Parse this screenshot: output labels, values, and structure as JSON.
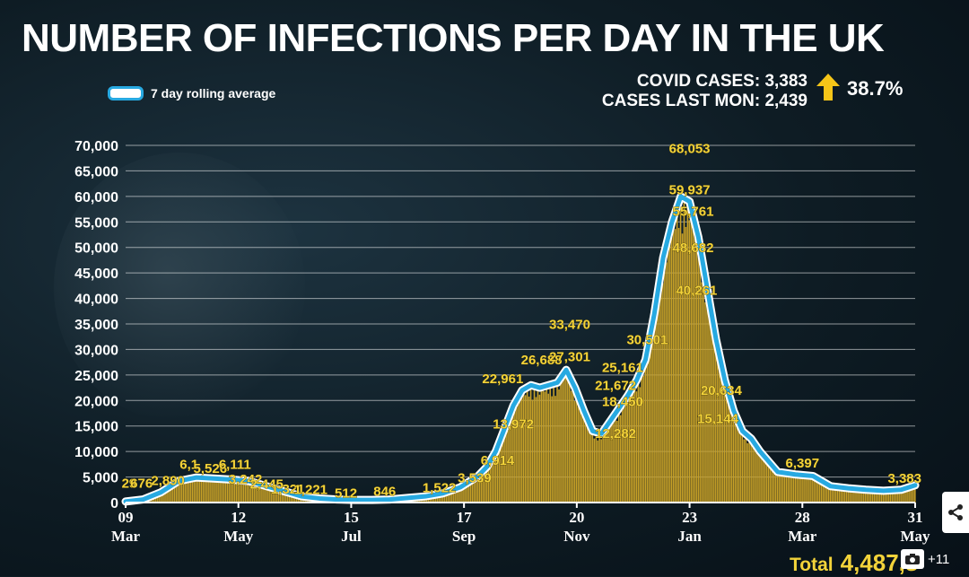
{
  "page": {
    "title": "NUMBER OF INFECTIONS PER DAY IN THE UK",
    "legend_label": "7 day rolling average",
    "stats": {
      "covid_cases": "COVID CASES: 3,383",
      "cases_last_mon": "CASES LAST MON: 2,439",
      "change_pct": "38.7%"
    },
    "total_label": "Total",
    "total_value": "4,487,3",
    "gallery_count": "+11",
    "colors": {
      "bars": "#c9a227",
      "rolling_line": "#27a9e1",
      "labels": "#f3d33a",
      "arrow": "#f5c518"
    }
  },
  "chart_data": {
    "type": "bar",
    "title": "NUMBER OF INFECTIONS PER DAY IN THE UK",
    "ylim": [
      0,
      70000
    ],
    "yticks": [
      0,
      5000,
      10000,
      15000,
      20000,
      25000,
      30000,
      35000,
      40000,
      45000,
      50000,
      55000,
      60000,
      65000,
      70000
    ],
    "ytick_labels": [
      "0",
      "5,000",
      "10,000",
      "15,000",
      "20,000",
      "25,000",
      "30,000",
      "35,000",
      "40,000",
      "45,000",
      "50,000",
      "55,000",
      "60,000",
      "65,000",
      "70,000"
    ],
    "xticks": [
      {
        "day": 0,
        "day_label": "09",
        "month_label": "Mar"
      },
      {
        "day": 64,
        "day_label": "12",
        "month_label": "May"
      },
      {
        "day": 128,
        "day_label": "15",
        "month_label": "Jul"
      },
      {
        "day": 192,
        "day_label": "17",
        "month_label": "Sep"
      },
      {
        "day": 256,
        "day_label": "20",
        "month_label": "Nov"
      },
      {
        "day": 320,
        "day_label": "23",
        "month_label": "Jan"
      },
      {
        "day": 384,
        "day_label": "28",
        "month_label": "Mar"
      },
      {
        "day": 448,
        "day_label": "31",
        "month_label": "May"
      }
    ],
    "grid": true,
    "legend": "top-left",
    "series": [
      {
        "name": "7 day rolling average",
        "x": [
          0,
          10,
          20,
          30,
          40,
          50,
          60,
          70,
          80,
          90,
          100,
          110,
          120,
          130,
          140,
          150,
          160,
          170,
          180,
          190,
          200,
          205,
          210,
          215,
          220,
          225,
          230,
          235,
          240,
          245,
          250,
          255,
          260,
          265,
          270,
          275,
          280,
          285,
          290,
          295,
          300,
          305,
          310,
          315,
          320,
          325,
          330,
          335,
          340,
          345,
          350,
          355,
          360,
          365,
          370,
          380,
          390,
          400,
          410,
          420,
          430,
          440,
          448
        ],
        "values": [
          200,
          600,
          2000,
          4200,
          4900,
          4700,
          4500,
          4200,
          3200,
          2200,
          1200,
          800,
          600,
          500,
          500,
          600,
          900,
          1200,
          1800,
          3000,
          5200,
          7000,
          10000,
          14500,
          19000,
          22000,
          23000,
          22500,
          23000,
          23500,
          26000,
          22500,
          18000,
          14000,
          13500,
          16000,
          18500,
          21000,
          24000,
          28000,
          37000,
          48000,
          55000,
          60000,
          59000,
          52000,
          42000,
          32000,
          24000,
          18000,
          14000,
          12500,
          10000,
          8000,
          6000,
          5500,
          5200,
          3200,
          2800,
          2500,
          2300,
          2500,
          3383
        ]
      }
    ],
    "annotations": [
      {
        "day": 2,
        "value": 2900,
        "label": "29"
      },
      {
        "day": 9,
        "value": 2900,
        "label": "676"
      },
      {
        "day": 24,
        "value": 3400,
        "label": "2,890"
      },
      {
        "day": 36,
        "value": 6600,
        "label": "6,1"
      },
      {
        "day": 48,
        "value": 5800,
        "label": "5,526"
      },
      {
        "day": 62,
        "value": 6600,
        "label": "6,111"
      },
      {
        "day": 68,
        "value": 3700,
        "label": "3,242"
      },
      {
        "day": 80,
        "value": 2700,
        "label": "2,445"
      },
      {
        "day": 92,
        "value": 1800,
        "label": "1,321"
      },
      {
        "day": 105,
        "value": 1700,
        "label": "1,221"
      },
      {
        "day": 125,
        "value": 1000,
        "label": "512"
      },
      {
        "day": 147,
        "value": 1300,
        "label": "846"
      },
      {
        "day": 178,
        "value": 2000,
        "label": "1,522"
      },
      {
        "day": 198,
        "value": 4000,
        "label": "3,539"
      },
      {
        "day": 211,
        "value": 7400,
        "label": "6,914"
      },
      {
        "day": 220,
        "value": 14500,
        "label": "13,972"
      },
      {
        "day": 214,
        "value": 23400,
        "label": "22,961"
      },
      {
        "day": 236,
        "value": 27100,
        "label": "26,688"
      },
      {
        "day": 252,
        "value": 27700,
        "label": "27,301"
      },
      {
        "day": 252,
        "value": 34000,
        "label": "33,470"
      },
      {
        "day": 278,
        "value": 12700,
        "label": "12,282"
      },
      {
        "day": 282,
        "value": 18900,
        "label": "18,450"
      },
      {
        "day": 278,
        "value": 22100,
        "label": "21,672"
      },
      {
        "day": 282,
        "value": 25600,
        "label": "25,161"
      },
      {
        "day": 296,
        "value": 31000,
        "label": "30,501"
      },
      {
        "day": 320,
        "value": 68500,
        "label": "68,053"
      },
      {
        "day": 320,
        "value": 60400,
        "label": "59,937"
      },
      {
        "day": 322,
        "value": 56200,
        "label": "55,761"
      },
      {
        "day": 322,
        "value": 49100,
        "label": "48,682"
      },
      {
        "day": 324,
        "value": 40700,
        "label": "40,261"
      },
      {
        "day": 338,
        "value": 21100,
        "label": "20,634"
      },
      {
        "day": 336,
        "value": 15600,
        "label": "15,144"
      },
      {
        "day": 384,
        "value": 6900,
        "label": "6,397"
      },
      {
        "day": 442,
        "value": 3900,
        "label": "3,383"
      }
    ]
  }
}
